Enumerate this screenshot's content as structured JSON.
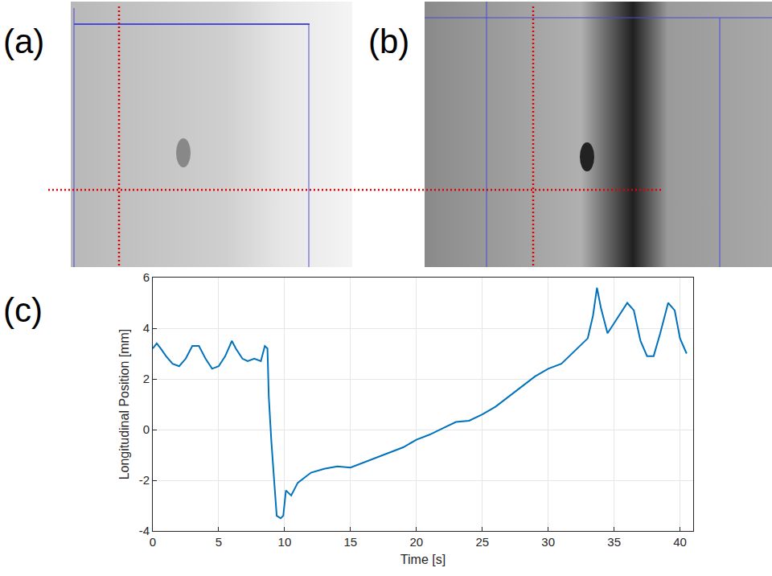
{
  "panel_labels": [
    "(a)",
    "(b)",
    "(c)"
  ],
  "chart_data": {
    "type": "line",
    "x_label": "Time [s]",
    "y_label": "Longitudinal Position [mm]",
    "xlim": [
      0,
      41
    ],
    "xticks": [
      0,
      5,
      10,
      15,
      20,
      25,
      30,
      35,
      40
    ],
    "ylim": [
      -4,
      6
    ],
    "yticks": [
      -4,
      -2,
      0,
      2,
      4,
      6
    ],
    "grid": true,
    "color": "#0072bd",
    "x": [
      0,
      0.3,
      0.6,
      1,
      1.5,
      2,
      2.5,
      3,
      3.5,
      4,
      4.5,
      5,
      5.5,
      6,
      6.3,
      6.8,
      7.2,
      7.7,
      8.2,
      8.5,
      8.7,
      8.8,
      9.0,
      9.2,
      9.4,
      9.7,
      9.9,
      10.1,
      10.5,
      11,
      11.5,
      12,
      13,
      14,
      15,
      16,
      17,
      18,
      19,
      20,
      21,
      22,
      23,
      24,
      25,
      26,
      27,
      28,
      29,
      30,
      31,
      32,
      33,
      33.4,
      33.7,
      34,
      34.5,
      35,
      36,
      36.5,
      37,
      37.5,
      38,
      38.5,
      39.1,
      39.6,
      40,
      40.5
    ],
    "values": [
      3.2,
      3.4,
      3.2,
      2.9,
      2.6,
      2.5,
      2.8,
      3.3,
      3.3,
      2.8,
      2.4,
      2.5,
      2.9,
      3.5,
      3.2,
      2.8,
      2.7,
      2.8,
      2.7,
      3.3,
      3.2,
      1.3,
      -0.5,
      -2.0,
      -3.4,
      -3.5,
      -3.4,
      -2.4,
      -2.6,
      -2.1,
      -1.9,
      -1.7,
      -1.55,
      -1.45,
      -1.5,
      -1.3,
      -1.1,
      -0.9,
      -0.7,
      -0.4,
      -0.2,
      0.05,
      0.3,
      0.35,
      0.6,
      0.9,
      1.3,
      1.7,
      2.1,
      2.4,
      2.6,
      3.1,
      3.6,
      4.5,
      5.6,
      4.8,
      3.8,
      4.2,
      5.0,
      4.7,
      3.5,
      2.9,
      2.9,
      3.8,
      5.0,
      4.7,
      3.6,
      3.0
    ]
  }
}
